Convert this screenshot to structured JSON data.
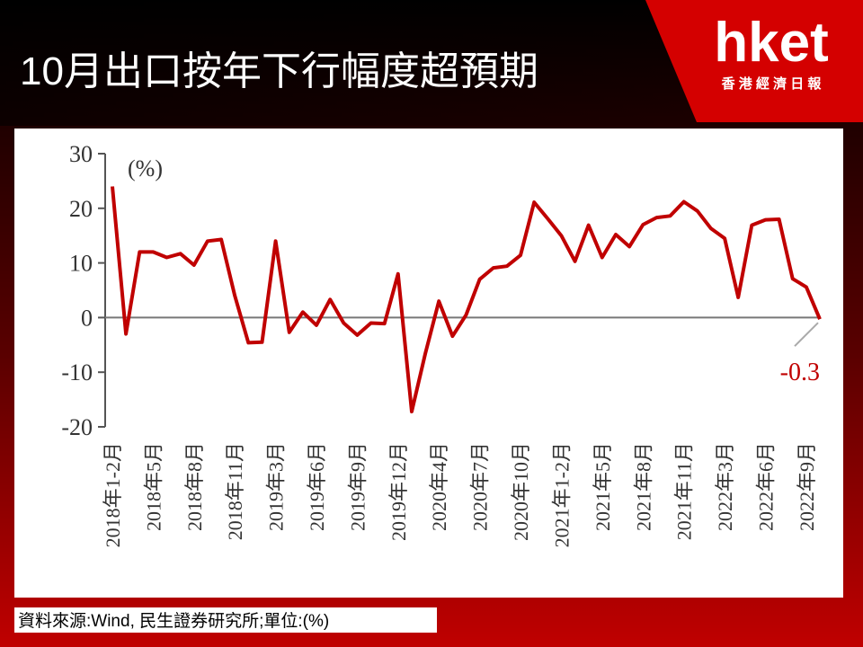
{
  "header": {
    "logo": "hket",
    "logo_subtitle": "香 港 經 濟 日 報"
  },
  "chart_data": {
    "type": "line",
    "title": "10月出口按年下行幅度超預期",
    "y_unit": "(%)",
    "source": "資料來源:Wind, 民生證券研究所;單位:(%)",
    "categories": [
      "2018年1-2月",
      null,
      null,
      "2018年5月",
      null,
      null,
      "2018年8月",
      null,
      null,
      "2018年11月",
      null,
      null,
      "2019年3月",
      null,
      null,
      "2019年6月",
      null,
      null,
      "2019年9月",
      null,
      null,
      "2019年12月",
      null,
      null,
      "2020年4月",
      null,
      null,
      "2020年7月",
      null,
      null,
      "2020年10月",
      null,
      null,
      "2021年1-2月",
      null,
      null,
      "2021年5月",
      null,
      null,
      "2021年8月",
      null,
      null,
      "2021年11月",
      null,
      null,
      "2022年3月",
      null,
      null,
      "2022年6月",
      null,
      null,
      "2022年9月",
      null
    ],
    "values": [
      24,
      -3,
      12,
      12,
      11,
      11.7,
      9.6,
      14,
      14.3,
      4,
      -4.6,
      -4.5,
      14,
      -2.7,
      1,
      -1.4,
      3.3,
      -1,
      -3.2,
      -1,
      -1.1,
      8,
      -17.2,
      -6.6,
      3,
      -3.4,
      0.5,
      7,
      9.1,
      9.4,
      11.4,
      21.1,
      18.1,
      15,
      10.3,
      16.9,
      11,
      15.2,
      13,
      17,
      18.3,
      18.6,
      21.2,
      19.5,
      16.3,
      14.5,
      3.7,
      16.9,
      17.9,
      18,
      7.1,
      5.6,
      -0.3
    ],
    "color": "#c00000",
    "ylim": [
      -20,
      30
    ],
    "yticks": [
      -20,
      -10,
      0,
      10,
      20,
      30
    ]
  }
}
